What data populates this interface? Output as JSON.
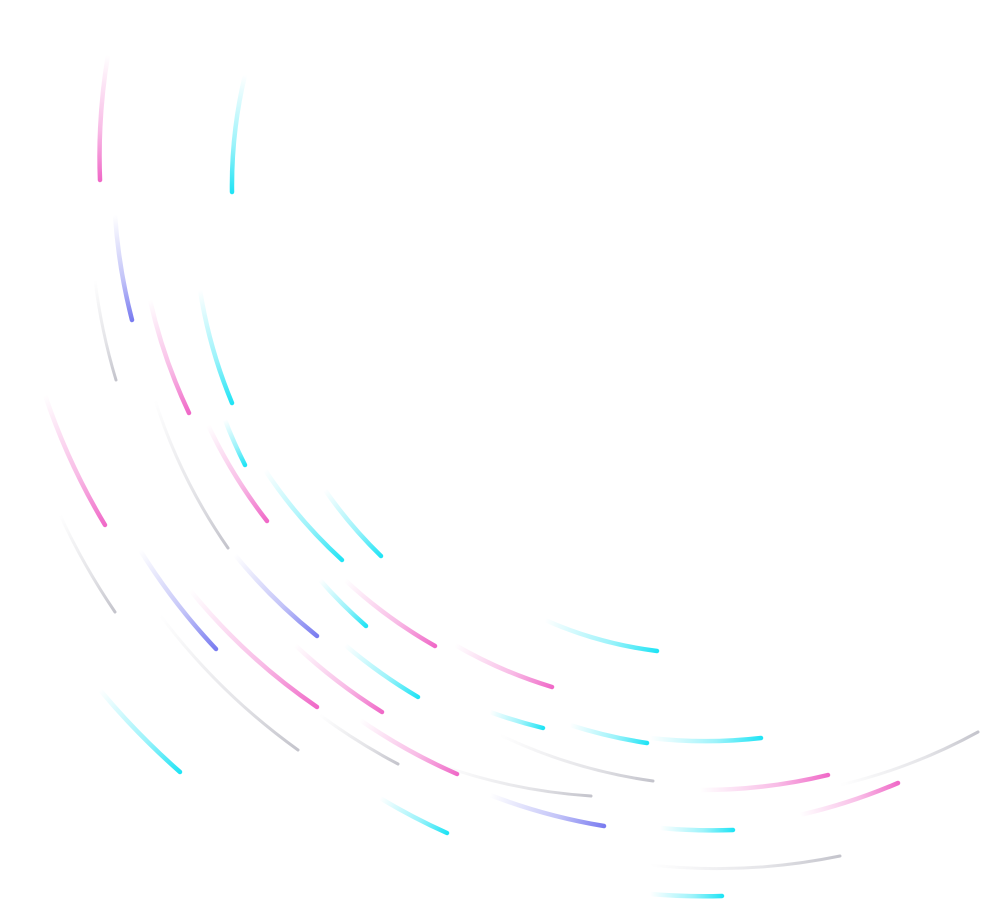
{
  "background": "#ffffff",
  "palette": {
    "pink": "#f06ac8",
    "cyan": "#22e4f5",
    "blue": "#7a7cf0",
    "gray": "#c4c4cc"
  }
}
